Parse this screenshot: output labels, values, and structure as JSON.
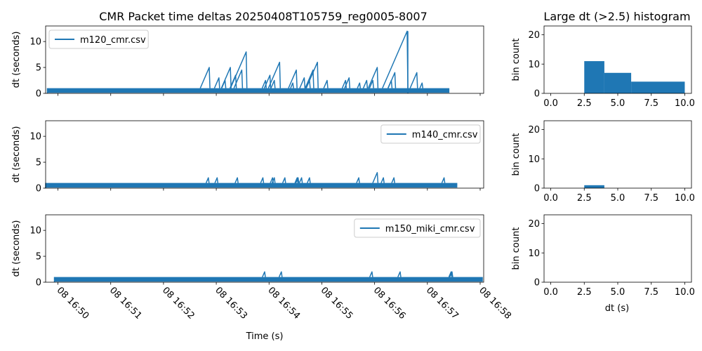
{
  "figure": {
    "title": "CMR Packet time deltas 20250408T105759_reg0005-8007",
    "hist_title": "Large dt (>2.5) histogram",
    "xlabel": "Time (s)",
    "hist_xlabel": "dt (s)",
    "series_color": "#1f77b4"
  },
  "chart_data": [
    {
      "type": "line",
      "name": "m120_cmr.csv",
      "ylabel": "dt (seconds)",
      "ylim": [
        0,
        13
      ],
      "yticks": [
        0,
        5,
        10
      ],
      "xlim": [
        "16:49:46",
        "16:58:04"
      ],
      "xticks": [
        "08 16:50",
        "08 16:51",
        "08 16:52",
        "08 16:53",
        "08 16:54",
        "08 16:55",
        "08 16:56",
        "08 16:57",
        "08 16:58"
      ],
      "baseline": {
        "x_start": "16:49:48",
        "x_end": "16:57:25",
        "low": 0.1,
        "high": 1.0
      },
      "spikes": [
        {
          "x": "16:52:52",
          "y": 5.0
        },
        {
          "x": "16:53:03",
          "y": 3.0
        },
        {
          "x": "16:53:10",
          "y": 2.5
        },
        {
          "x": "16:53:16",
          "y": 5.0
        },
        {
          "x": "16:53:22",
          "y": 3.5
        },
        {
          "x": "16:53:29",
          "y": 4.5
        },
        {
          "x": "16:53:34",
          "y": 8.0
        },
        {
          "x": "16:53:56",
          "y": 2.5
        },
        {
          "x": "16:54:01",
          "y": 3.5
        },
        {
          "x": "16:54:06",
          "y": 2.5
        },
        {
          "x": "16:54:12",
          "y": 6.0
        },
        {
          "x": "16:54:27",
          "y": 2.0
        },
        {
          "x": "16:54:31",
          "y": 4.5
        },
        {
          "x": "16:54:40",
          "y": 3.0
        },
        {
          "x": "16:54:46",
          "y": 2.5
        },
        {
          "x": "16:54:50",
          "y": 4.5
        },
        {
          "x": "16:54:55",
          "y": 6.0
        },
        {
          "x": "16:55:06",
          "y": 2.5
        },
        {
          "x": "16:55:27",
          "y": 2.5
        },
        {
          "x": "16:55:31",
          "y": 3.0
        },
        {
          "x": "16:55:43",
          "y": 2.0
        },
        {
          "x": "16:55:51",
          "y": 2.5
        },
        {
          "x": "16:55:58",
          "y": 2.5
        },
        {
          "x": "16:56:03",
          "y": 5.0
        },
        {
          "x": "16:56:19",
          "y": 2.5
        },
        {
          "x": "16:56:23",
          "y": 4.0
        },
        {
          "x": "16:56:37",
          "y": 12.0
        },
        {
          "x": "16:56:48",
          "y": 4.0
        },
        {
          "x": "16:56:54",
          "y": 2.0
        }
      ],
      "gaps": [
        {
          "x": "16:56:37",
          "low": 0.0
        }
      ]
    },
    {
      "type": "line",
      "name": "m140_cmr.csv",
      "ylabel": "dt (seconds)",
      "ylim": [
        0,
        13
      ],
      "yticks": [
        0,
        5,
        10
      ],
      "xlim": [
        "16:49:46",
        "16:58:04"
      ],
      "baseline": {
        "x_start": "16:49:46",
        "x_end": "16:57:34",
        "low": 0.1,
        "high": 1.0
      },
      "spikes": [
        {
          "x": "16:52:51",
          "y": 2.0
        },
        {
          "x": "16:53:01",
          "y": 2.0
        },
        {
          "x": "16:53:24",
          "y": 2.0
        },
        {
          "x": "16:53:53",
          "y": 2.0
        },
        {
          "x": "16:54:04",
          "y": 2.0
        },
        {
          "x": "16:54:06",
          "y": 2.0
        },
        {
          "x": "16:54:18",
          "y": 2.0
        },
        {
          "x": "16:54:32",
          "y": 2.0
        },
        {
          "x": "16:54:33",
          "y": 2.0
        },
        {
          "x": "16:54:37",
          "y": 2.0
        },
        {
          "x": "16:54:46",
          "y": 2.0
        },
        {
          "x": "16:55:42",
          "y": 2.0
        },
        {
          "x": "16:56:03",
          "y": 3.0
        },
        {
          "x": "16:56:10",
          "y": 2.0
        },
        {
          "x": "16:56:22",
          "y": 2.0
        },
        {
          "x": "16:57:19",
          "y": 2.0
        }
      ]
    },
    {
      "type": "line",
      "name": "m150_miki_cmr.csv",
      "ylabel": "dt (seconds)",
      "ylim": [
        0,
        13
      ],
      "yticks": [
        0,
        5,
        10
      ],
      "xlim": [
        "16:49:46",
        "16:58:04"
      ],
      "baseline": {
        "x_start": "16:49:56",
        "x_end": "16:58:03",
        "low": 0.1,
        "high": 1.0
      },
      "spikes": [
        {
          "x": "16:53:55",
          "y": 2.0
        },
        {
          "x": "16:54:14",
          "y": 2.0
        },
        {
          "x": "16:55:57",
          "y": 2.0
        },
        {
          "x": "16:56:29",
          "y": 2.0
        },
        {
          "x": "16:57:27",
          "y": 2.0
        },
        {
          "x": "16:57:28",
          "y": 2.0
        }
      ]
    },
    {
      "type": "bar",
      "subtype": "histogram",
      "ylabel": "bin count",
      "xlim": [
        -0.5,
        10.5
      ],
      "ylim": [
        0,
        23
      ],
      "xticks": [
        "0.0",
        "2.5",
        "5.0",
        "7.5",
        "10.0"
      ],
      "yticks": [
        0,
        10,
        20
      ],
      "bins": [
        {
          "from": 2.5,
          "to": 4.0,
          "count": 11
        },
        {
          "from": 4.0,
          "to": 6.0,
          "count": 7
        },
        {
          "from": 6.0,
          "to": 10.0,
          "count": 4
        }
      ]
    },
    {
      "type": "bar",
      "subtype": "histogram",
      "ylabel": "bin count",
      "xlim": [
        -0.5,
        10.5
      ],
      "ylim": [
        0,
        23
      ],
      "xticks": [
        "0.0",
        "2.5",
        "5.0",
        "7.5",
        "10.0"
      ],
      "yticks": [
        0,
        10,
        20
      ],
      "bins": [
        {
          "from": 2.5,
          "to": 4.0,
          "count": 1
        }
      ]
    },
    {
      "type": "bar",
      "subtype": "histogram",
      "ylabel": "bin count",
      "xlim": [
        -0.5,
        10.5
      ],
      "ylim": [
        0,
        23
      ],
      "xticks": [
        "0.0",
        "2.5",
        "5.0",
        "7.5",
        "10.0"
      ],
      "yticks": [
        0,
        10,
        20
      ],
      "bins": []
    }
  ]
}
